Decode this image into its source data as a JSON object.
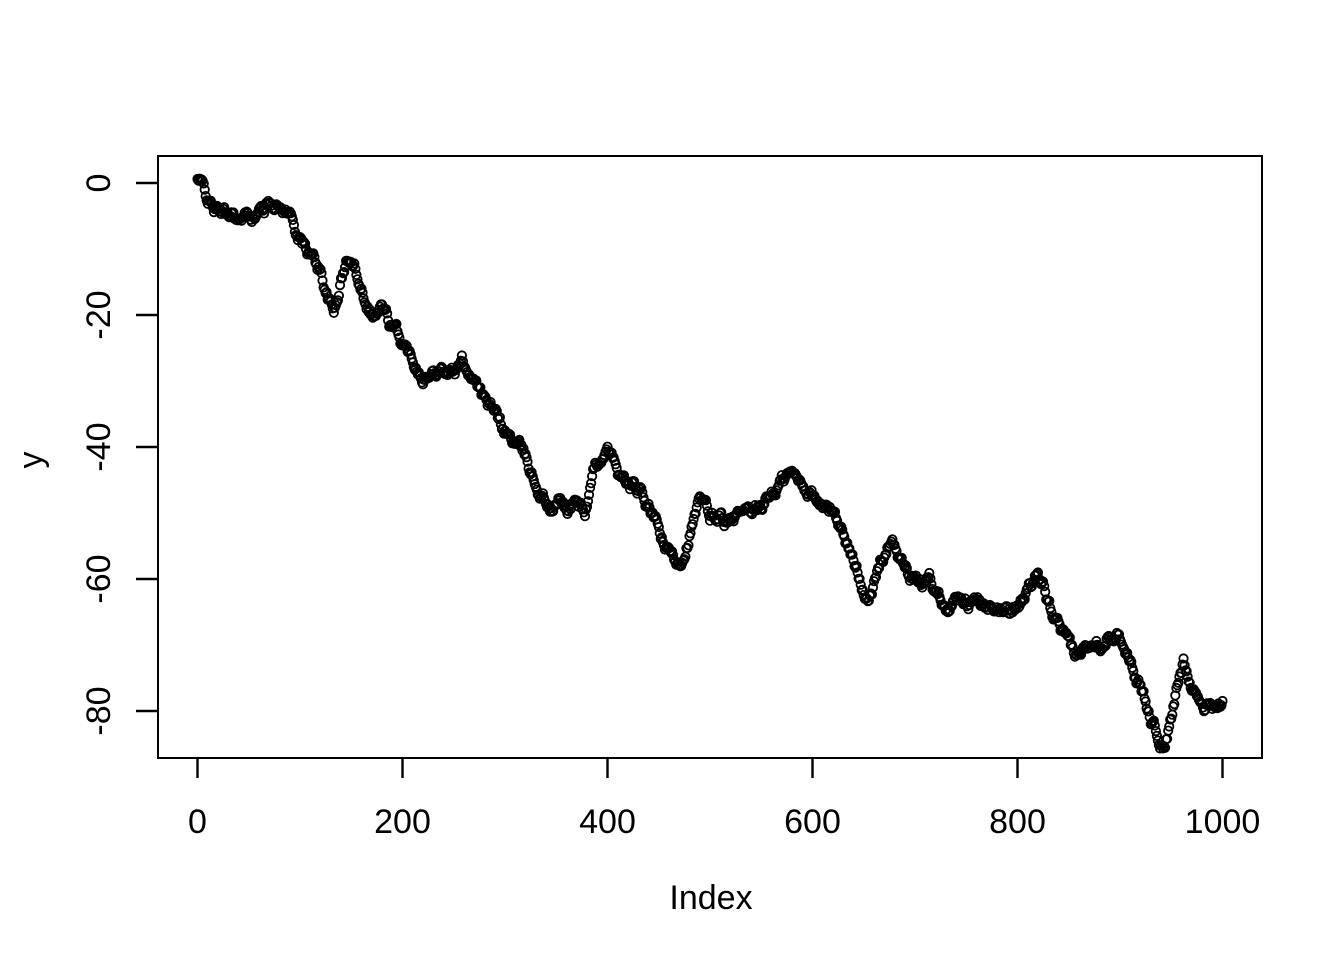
{
  "colors": {
    "background": "#ffffff",
    "foreground": "#000000"
  },
  "chart_data": {
    "type": "scatter",
    "title": "",
    "xlabel": "Index",
    "ylabel": "y",
    "x_ticks": [
      0,
      200,
      400,
      600,
      800,
      1000
    ],
    "y_ticks": [
      0,
      -20,
      -40,
      -60,
      -80
    ],
    "x_tick_labels": [
      "0",
      "200",
      "400",
      "600",
      "800",
      "1000"
    ],
    "y_tick_labels": [
      "0",
      "-20",
      "-40",
      "-60",
      "-80"
    ],
    "xlim": [
      -40,
      1040
    ],
    "ylim": [
      -88,
      4
    ],
    "grid": false,
    "legend": "none",
    "marker": "open-circle",
    "marker_color": "#000000",
    "n_points": 1000,
    "series": [
      {
        "name": "y",
        "sampling": "waypoints estimated every ~8 indices from the dense 1000-point random-walk scatter; full cloud is interpolated between waypoints",
        "x": [
          0,
          5,
          12,
          20,
          28,
          35,
          42,
          50,
          58,
          66,
          74,
          82,
          90,
          100,
          110,
          120,
          126,
          133,
          140,
          147,
          155,
          163,
          172,
          180,
          188,
          196,
          204,
          212,
          220,
          228,
          236,
          244,
          252,
          258,
          265,
          272,
          280,
          288,
          296,
          305,
          314,
          322,
          330,
          338,
          346,
          354,
          362,
          370,
          378,
          386,
          394,
          402,
          410,
          418,
          426,
          434,
          442,
          450,
          458,
          466,
          472,
          480,
          490,
          500,
          510,
          520,
          530,
          540,
          550,
          560,
          570,
          578,
          586,
          594,
          602,
          610,
          618,
          626,
          634,
          642,
          650,
          658,
          666,
          674,
          682,
          690,
          698,
          706,
          714,
          722,
          730,
          738,
          746,
          754,
          762,
          770,
          778,
          786,
          794,
          802,
          810,
          818,
          826,
          834,
          842,
          850,
          858,
          866,
          874,
          882,
          890,
          898,
          906,
          914,
          922,
          930,
          938,
          944,
          950,
          956,
          962,
          968,
          975,
          982,
          989,
          995,
          1000
        ],
        "y": [
          0.5,
          -0.8,
          -3,
          -4.5,
          -5,
          -4.2,
          -6.3,
          -4.8,
          -4.5,
          -3.6,
          -2.5,
          -3.4,
          -4.6,
          -8.5,
          -11,
          -13.2,
          -16.5,
          -20.2,
          -14.5,
          -11.5,
          -13.5,
          -16.5,
          -19.5,
          -18.5,
          -21.5,
          -23.5,
          -25.5,
          -26.8,
          -28.2,
          -29,
          -27,
          -28,
          -28.6,
          -27.2,
          -28.4,
          -29,
          -33,
          -34.8,
          -37,
          -38.5,
          -40.5,
          -42.5,
          -45.5,
          -47.5,
          -49.3,
          -48.2,
          -49.5,
          -48,
          -49.8,
          -45,
          -41.5,
          -41.2,
          -44,
          -45.8,
          -46.5,
          -48,
          -50,
          -53,
          -56,
          -57.5,
          -56.8,
          -52.5,
          -48.5,
          -51,
          -50.5,
          -51.8,
          -50.8,
          -51.5,
          -49.5,
          -47,
          -45.2,
          -44.3,
          -45.2,
          -45.8,
          -47.5,
          -49.5,
          -49.5,
          -51.5,
          -54.5,
          -58.5,
          -61,
          -62,
          -57.5,
          -54.5,
          -56,
          -58.5,
          -60.5,
          -61,
          -59.8,
          -62,
          -63.5,
          -62.8,
          -62,
          -63,
          -63.5,
          -65.5,
          -66,
          -64.5,
          -64.5,
          -63,
          -61.5,
          -60.5,
          -62.5,
          -65.5,
          -68.5,
          -71,
          -72.5,
          -70.5,
          -68.3,
          -68.8,
          -67.5,
          -66.8,
          -69.5,
          -73.5,
          -77,
          -81,
          -84,
          -84.8,
          -81.5,
          -76.5,
          -72.8,
          -74.5,
          -77,
          -79,
          -78.8,
          -78.3,
          -78.6
        ]
      }
    ]
  }
}
